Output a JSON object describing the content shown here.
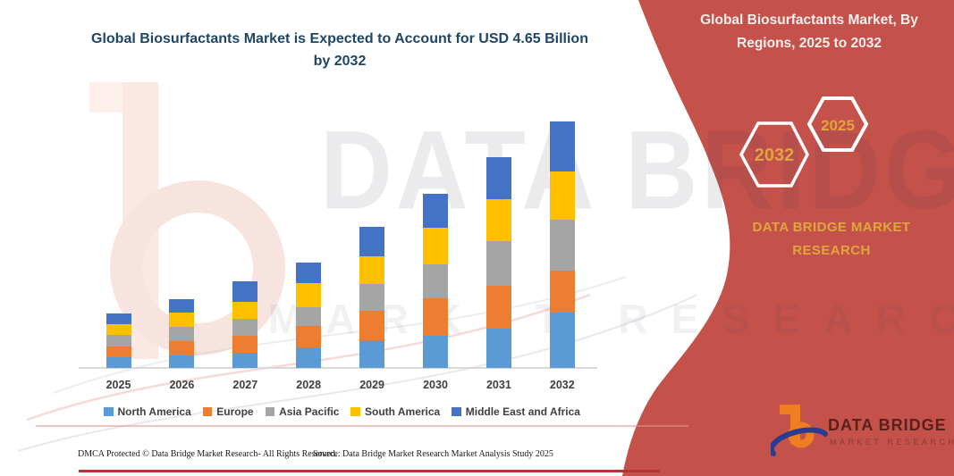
{
  "accent": {
    "panel_red": "#C4524B",
    "gold": "#DFA63C",
    "title_blue": "#1F4568",
    "rule_red": "#B23530"
  },
  "chart_title": "Global Biosurfactants Market is Expected to Account for USD 4.65 Billion by 2032",
  "chart_data": {
    "type": "bar",
    "stacked": true,
    "unit": "USD Billion",
    "title": "Global Biosurfactants Market is Expected to Account for USD 4.65 Billion by 2032",
    "categories": [
      "2025",
      "2026",
      "2027",
      "2028",
      "2029",
      "2030",
      "2031",
      "2032"
    ],
    "series": [
      {
        "name": "North America",
        "color": "#5B9BD5",
        "values": [
          0.2,
          0.24,
          0.29,
          0.39,
          0.52,
          0.61,
          0.74,
          1.04
        ]
      },
      {
        "name": "Europe",
        "color": "#ED7D31",
        "values": [
          0.21,
          0.27,
          0.32,
          0.4,
          0.56,
          0.71,
          0.81,
          0.8
        ]
      },
      {
        "name": "Asia Pacific",
        "color": "#A5A5A5",
        "values": [
          0.21,
          0.27,
          0.32,
          0.35,
          0.51,
          0.64,
          0.84,
          0.96
        ]
      },
      {
        "name": "South America",
        "color": "#FFC000",
        "values": [
          0.2,
          0.27,
          0.32,
          0.46,
          0.52,
          0.69,
          0.79,
          0.91
        ]
      },
      {
        "name": "Middle East and Africa",
        "color": "#4472C4",
        "values": [
          0.21,
          0.25,
          0.39,
          0.39,
          0.56,
          0.64,
          0.79,
          0.94
        ]
      }
    ],
    "totals": [
      1.03,
      1.3,
      1.64,
      1.99,
      2.67,
      3.29,
      3.97,
      4.65
    ],
    "ylim": [
      0,
      4.65
    ],
    "grid": false,
    "legend_position": "bottom"
  },
  "panel": {
    "title": "Global Biosurfactants Market, By Regions, 2025 to 2032",
    "hexagons": [
      "2032",
      "2025"
    ],
    "brand": "DATA BRIDGE MARKET RESEARCH"
  },
  "watermark": {
    "line1": "DATA BRIDGE",
    "line2": "MARKET RESEARCH"
  },
  "logo": {
    "name": "DATA BRIDGE",
    "subtitle": "MARKET RESEARCH"
  },
  "footer": {
    "left": "DMCA Protected © Data Bridge Market Research-  All Rights Reserved.",
    "source": "Source: Data Bridge Market Research  Market Analysis Study 2025"
  }
}
